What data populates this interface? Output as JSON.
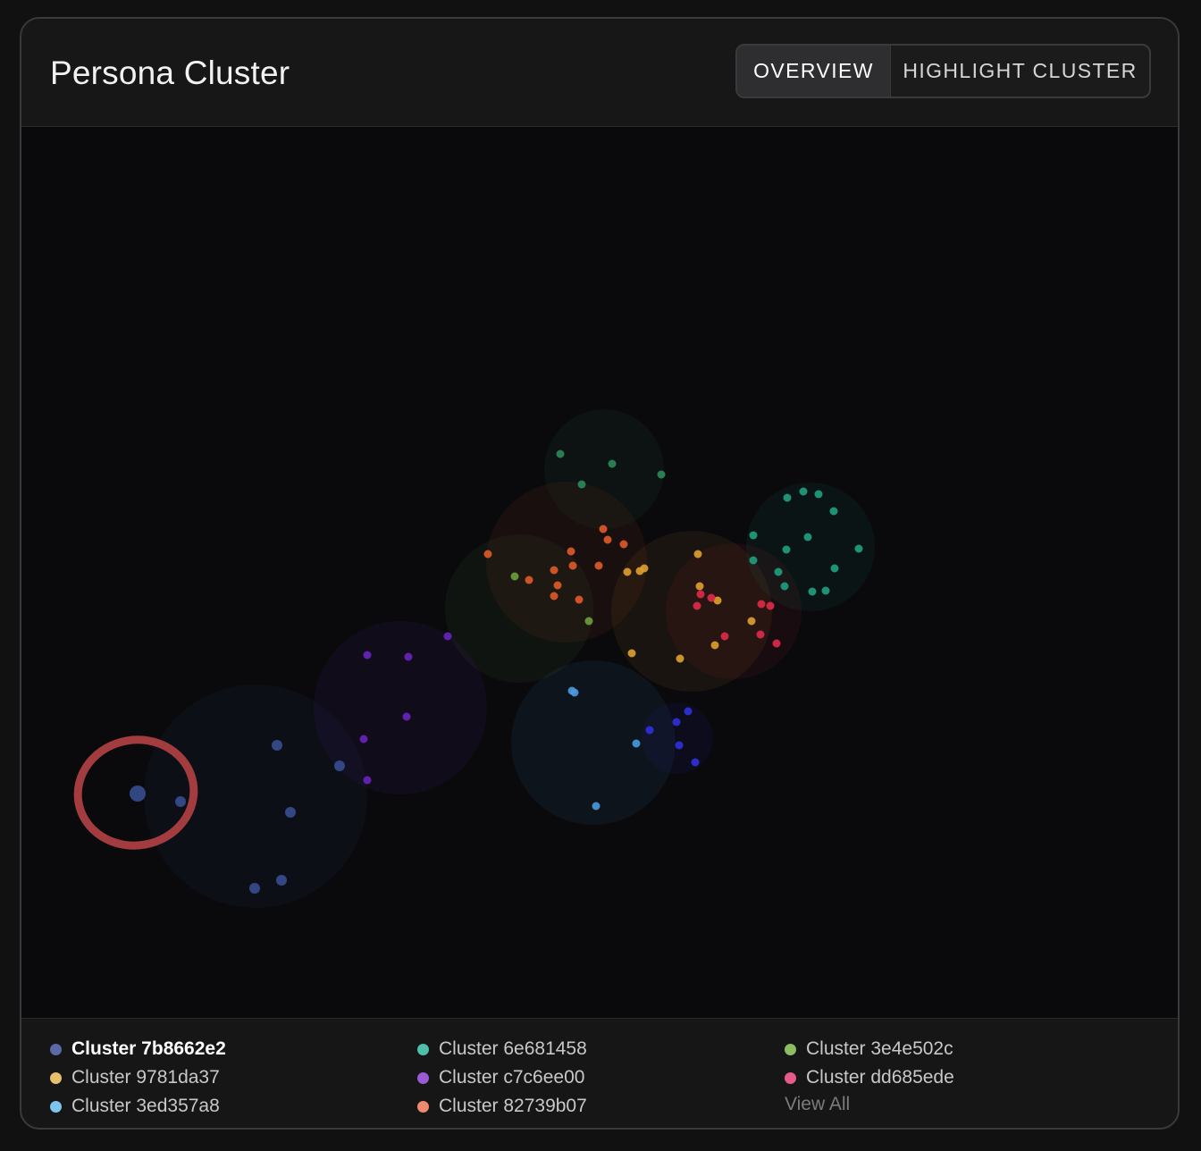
{
  "header": {
    "title": "Persona Cluster",
    "tabs": [
      {
        "label": "OVERVIEW",
        "active": true
      },
      {
        "label": "HIGHLIGHT CLUSTER",
        "active": false
      }
    ]
  },
  "highlight": {
    "cluster": "7b8662e2",
    "color": "#a23c3e"
  },
  "chart_data": {
    "type": "scatter",
    "xlim": [
      0,
      1298
    ],
    "ylim": [
      997,
      0
    ],
    "clusters": [
      {
        "id": "7b8662e2",
        "color": "#3c55a0",
        "radius": 125,
        "center": [
          262,
          749
        ],
        "points": [
          [
            130,
            746
          ],
          [
            178,
            755
          ],
          [
            286,
            692
          ],
          [
            356,
            715
          ],
          [
            301,
            767
          ],
          [
            291,
            843
          ],
          [
            261,
            852
          ]
        ]
      },
      {
        "id": "c7c6ee00",
        "color": "#6a24c0",
        "radius": 97,
        "center": [
          424,
          650
        ],
        "points": [
          [
            477,
            570
          ],
          [
            387,
            591
          ],
          [
            433,
            593
          ],
          [
            431,
            660
          ],
          [
            383,
            685
          ],
          [
            387,
            731
          ]
        ]
      },
      {
        "id": "3ed357a8",
        "color": "#4a9ae0",
        "radius": 92,
        "center": [
          640,
          689
        ],
        "points": [
          [
            616,
            631
          ],
          [
            619,
            633
          ],
          [
            688,
            690
          ],
          [
            643,
            760
          ]
        ]
      },
      {
        "id": "blue2",
        "color": "#3030dd",
        "radius": 40,
        "center": [
          734,
          684
        ],
        "points": [
          [
            746,
            654
          ],
          [
            733,
            666
          ],
          [
            703,
            675
          ],
          [
            736,
            692
          ],
          [
            754,
            711
          ]
        ]
      },
      {
        "id": "3e4e502c",
        "color": "#6aa040",
        "radius": 83,
        "center": [
          557,
          539
        ],
        "points": [
          [
            552,
            503
          ],
          [
            635,
            553
          ]
        ]
      },
      {
        "id": "82739b07",
        "color": "#e05a2a",
        "radius": 90,
        "center": [
          610,
          487
        ],
        "points": [
          [
            522,
            478
          ],
          [
            568,
            507
          ],
          [
            596,
            496
          ],
          [
            600,
            513
          ],
          [
            596,
            525
          ],
          [
            624,
            529
          ],
          [
            615,
            475
          ],
          [
            617,
            491
          ],
          [
            646,
            491
          ],
          [
            651,
            450
          ],
          [
            656,
            462
          ],
          [
            674,
            467
          ]
        ]
      },
      {
        "id": "9781da37",
        "color": "#e0a030",
        "radius": 90,
        "center": [
          750,
          542
        ],
        "points": [
          [
            678,
            498
          ],
          [
            692,
            497
          ],
          [
            697,
            494
          ],
          [
            757,
            478
          ],
          [
            759,
            514
          ],
          [
            779,
            530
          ],
          [
            817,
            553
          ],
          [
            737,
            595
          ],
          [
            683,
            589
          ],
          [
            776,
            580
          ]
        ]
      },
      {
        "id": "dd685ede",
        "color": "#e02a4a",
        "radius": 76,
        "center": [
          797,
          542
        ],
        "points": [
          [
            760,
            523
          ],
          [
            772,
            527
          ],
          [
            756,
            536
          ],
          [
            828,
            534
          ],
          [
            838,
            536
          ],
          [
            787,
            570
          ],
          [
            827,
            568
          ],
          [
            845,
            578
          ]
        ]
      },
      {
        "id": "6e681458",
        "color": "#1fa080",
        "radius": 72,
        "center": [
          883,
          470
        ],
        "points": [
          [
            857,
            415
          ],
          [
            875,
            408
          ],
          [
            892,
            411
          ],
          [
            909,
            430
          ],
          [
            880,
            459
          ],
          [
            856,
            473
          ],
          [
            819,
            457
          ],
          [
            819,
            485
          ],
          [
            847,
            498
          ],
          [
            854,
            514
          ],
          [
            885,
            520
          ],
          [
            900,
            519
          ],
          [
            910,
            494
          ],
          [
            937,
            472
          ]
        ]
      },
      {
        "id": "teal-top",
        "color": "#2e8a5a",
        "radius": 67,
        "center": [
          652,
          383
        ],
        "points": [
          [
            603,
            366
          ],
          [
            661,
            377
          ],
          [
            716,
            389
          ],
          [
            627,
            400
          ]
        ]
      }
    ]
  },
  "legend": {
    "items": [
      {
        "label": "Cluster 7b8662e2",
        "color": "#5a6aa8",
        "selected": true
      },
      {
        "label": "Cluster 9781da37",
        "color": "#e6c06a",
        "selected": false
      },
      {
        "label": "Cluster 3ed357a8",
        "color": "#7cc6ee",
        "selected": false
      },
      {
        "label": "Cluster 6e681458",
        "color": "#4fbeab",
        "selected": false
      },
      {
        "label": "Cluster c7c6ee00",
        "color": "#9b5ad6",
        "selected": false
      },
      {
        "label": "Cluster 82739b07",
        "color": "#ee8a6e",
        "selected": false
      },
      {
        "label": "Cluster 3e4e502c",
        "color": "#8dbd62",
        "selected": false
      },
      {
        "label": "Cluster dd685ede",
        "color": "#e95a8c",
        "selected": false
      }
    ],
    "view_all": "View All"
  }
}
